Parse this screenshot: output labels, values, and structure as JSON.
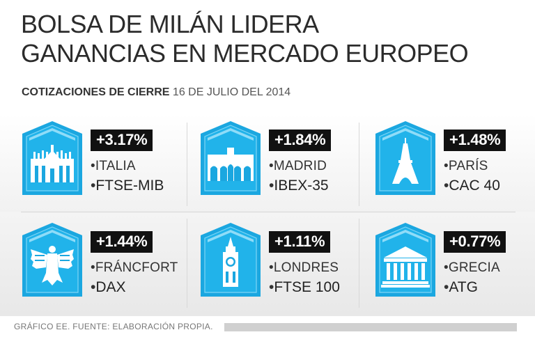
{
  "title": {
    "line1": "BOLSA DE MILÁN LIDERA",
    "line2": "GANANCIAS EN MERCADO EUROPEO"
  },
  "subtitle": {
    "label": "COTIZACIONES DE CIERRE",
    "date": "16 DE JULIO DEL 2014"
  },
  "footer": "GRÁFICO EE. FUENTE: ELABORACIÓN PROPIA.",
  "colors": {
    "badge": "#1ba7e0",
    "badge_dark": "#1490c4",
    "label_bg": "#111111"
  },
  "chart_data": {
    "type": "table",
    "title": "BOLSA DE MILÁN LIDERA GANANCIAS EN MERCADO EUROPEO",
    "subtitle": "COTIZACIONES DE CIERRE 16 DE JULIO DEL 2014",
    "columns": [
      "city",
      "index",
      "change_pct"
    ],
    "rows": [
      {
        "pct": "+3.17%",
        "value": 3.17,
        "city": "ITALIA",
        "index": "FTSE-MIB",
        "icon": "milan-cathedral-icon"
      },
      {
        "pct": "+1.84%",
        "value": 1.84,
        "city": "MADRID",
        "index": "IBEX-35",
        "icon": "puerta-de-alcala-icon"
      },
      {
        "pct": "+1.48%",
        "value": 1.48,
        "city": "PARÍS",
        "index": "CAC 40",
        "icon": "eiffel-tower-icon"
      },
      {
        "pct": "+1.44%",
        "value": 1.44,
        "city": "FRÁNCFORT",
        "index": "DAX",
        "icon": "german-eagle-icon"
      },
      {
        "pct": "+1.11%",
        "value": 1.11,
        "city": "LONDRES",
        "index": "FTSE 100",
        "icon": "big-ben-icon"
      },
      {
        "pct": "+0.77%",
        "value": 0.77,
        "city": "GRECIA",
        "index": "ATG",
        "icon": "greek-temple-icon"
      }
    ]
  }
}
